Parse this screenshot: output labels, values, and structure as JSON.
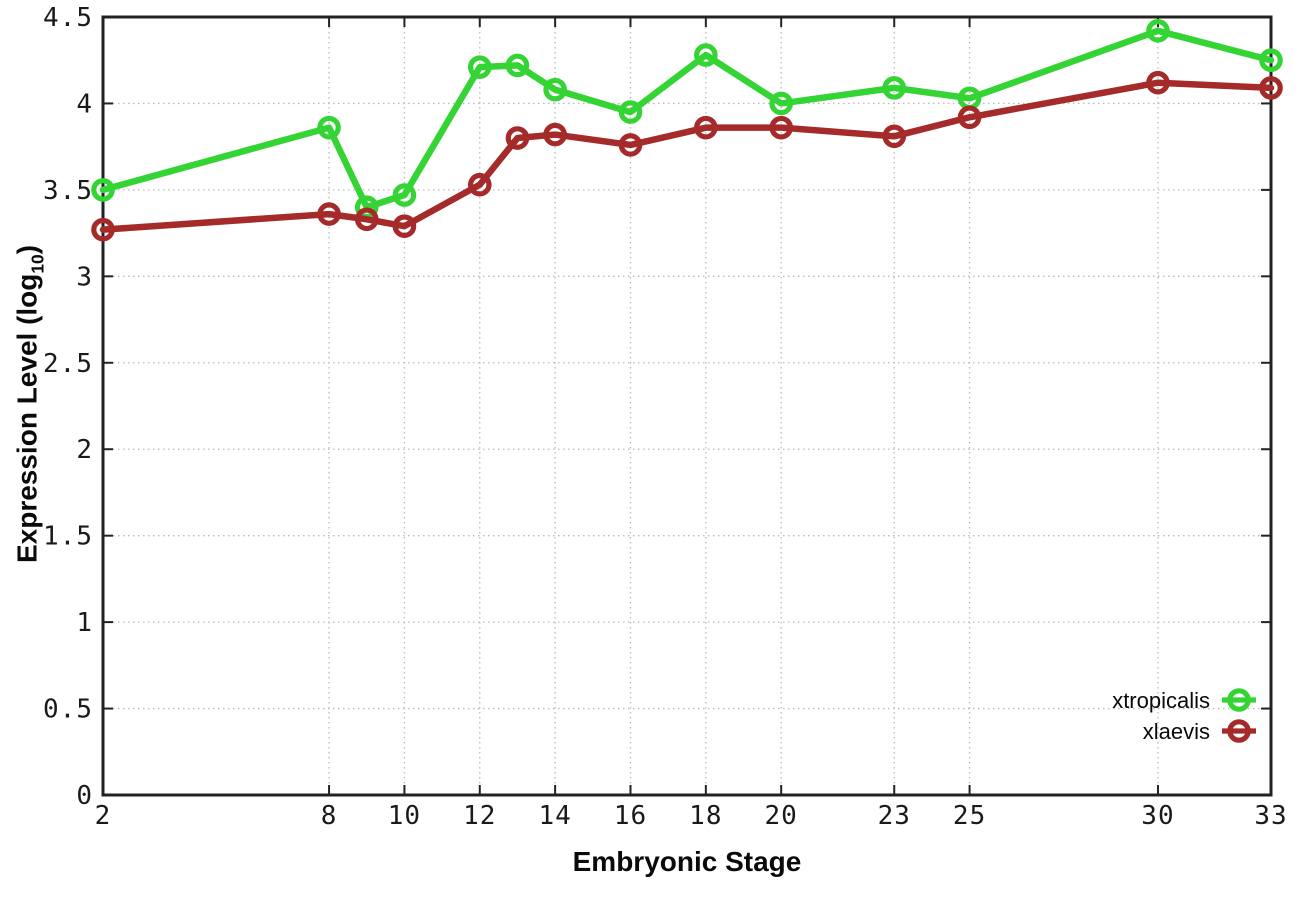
{
  "chart_data": {
    "type": "line",
    "title": "",
    "xlabel": "Embryonic Stage",
    "ylabel": {
      "prefix": "Expression Level (log",
      "subscript": "10",
      "suffix": ")"
    },
    "x": [
      2,
      8,
      9,
      10,
      12,
      13,
      14,
      16,
      18,
      20,
      23,
      25,
      30,
      33
    ],
    "xtick_values": [
      2,
      8,
      10,
      12,
      14,
      16,
      18,
      20,
      23,
      25,
      30,
      33
    ],
    "xtick_labels": [
      "2",
      "8",
      "10",
      "12",
      "14",
      "16",
      "18",
      "20",
      "23",
      "25",
      "30",
      "33"
    ],
    "ytick_values": [
      0,
      0.5,
      1,
      1.5,
      2,
      2.5,
      3,
      3.5,
      4,
      4.5
    ],
    "ytick_labels": [
      "0",
      "0.5",
      "1",
      "1.5",
      "2",
      "2.5",
      "3",
      "3.5",
      "4",
      "4.5"
    ],
    "xlim": [
      2,
      33
    ],
    "ylim": [
      0,
      4.5
    ],
    "grid": true,
    "legend_position": "bottom-right",
    "series": [
      {
        "name": "xtropicalis",
        "color": "#34d434",
        "values": [
          3.5,
          3.86,
          3.4,
          3.47,
          4.21,
          4.22,
          4.08,
          3.95,
          4.28,
          4.0,
          4.09,
          4.03,
          4.42,
          4.25
        ]
      },
      {
        "name": "xlaevis",
        "color": "#a52b2b",
        "values": [
          3.27,
          3.36,
          3.33,
          3.29,
          3.53,
          3.8,
          3.82,
          3.76,
          3.86,
          3.86,
          3.81,
          3.92,
          4.12,
          4.09
        ]
      }
    ],
    "colors": {
      "grid": "#bbbbbb",
      "axis": "#222222",
      "text": "#1a1a1a"
    }
  }
}
